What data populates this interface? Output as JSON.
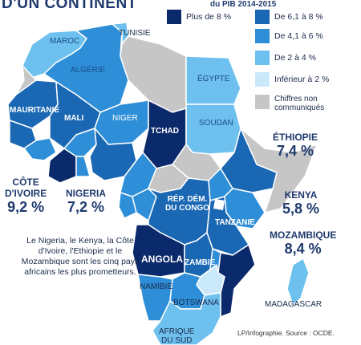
{
  "header": {
    "title": "D'UN CONTINENT",
    "legend_heading": "du PIB 2014-2015"
  },
  "legend": {
    "items": [
      {
        "label": "Plus de 8 %",
        "color": "#0b2a6b"
      },
      {
        "label": "De 6,1 à 8 %",
        "color": "#1a67b3"
      },
      {
        "label": "De 4,1 à 6 %",
        "color": "#2e8fd8"
      },
      {
        "label": "De 2 à 4 %",
        "color": "#6ec0ef"
      },
      {
        "label": "Inférieur à 2 %",
        "color": "#c9e9fb"
      },
      {
        "label": "Chiffres non communiqués",
        "color": "#c6c6c6"
      }
    ]
  },
  "countries": {
    "maroc": "MAROC",
    "tunisie": "TUNISIE",
    "algerie": "ALGÉRIE",
    "egypte": "ÉGYPTE",
    "mauritanie": "MAURITANIE",
    "mali": "MALI",
    "niger": "NIGER",
    "tchad": "TCHAD",
    "soudan": "SOUDAN",
    "rdc_1": "RÉP. DÉM.",
    "rdc_2": "DU CONGO",
    "tanzanie": "TANZANIE",
    "angola": "ANGOLA",
    "zambie": "ZAMBIE",
    "namibie": "NAMIBIE",
    "botswana": "BOTSWANA",
    "madagascar": "MADAGASCAR",
    "afrique_du_sud_1": "AFRIQUE",
    "afrique_du_sud_2": "DU SUD"
  },
  "highlights": {
    "ethiopie": {
      "name": "ÉTHIOPIE",
      "value": "7,4 %"
    },
    "kenya": {
      "name": "KENYA",
      "value": "5,8 %"
    },
    "mozambique": {
      "name": "MOZAMBIQUE",
      "value": "8,4 %"
    },
    "nigeria": {
      "name": "NIGERIA",
      "value": "7,2 %"
    },
    "cote_divoire": {
      "name_1": "CÔTE",
      "name_2": "D'IVOIRE",
      "value": "9,2 %"
    }
  },
  "note": "Le Nigeria, le Kenya, la Côte d'Ivoire, l'Ethiopie et le Mozambique sont les cinq pays africains les plus prometteurs.",
  "source": "LP/Infographie.   Source : OCDE."
}
